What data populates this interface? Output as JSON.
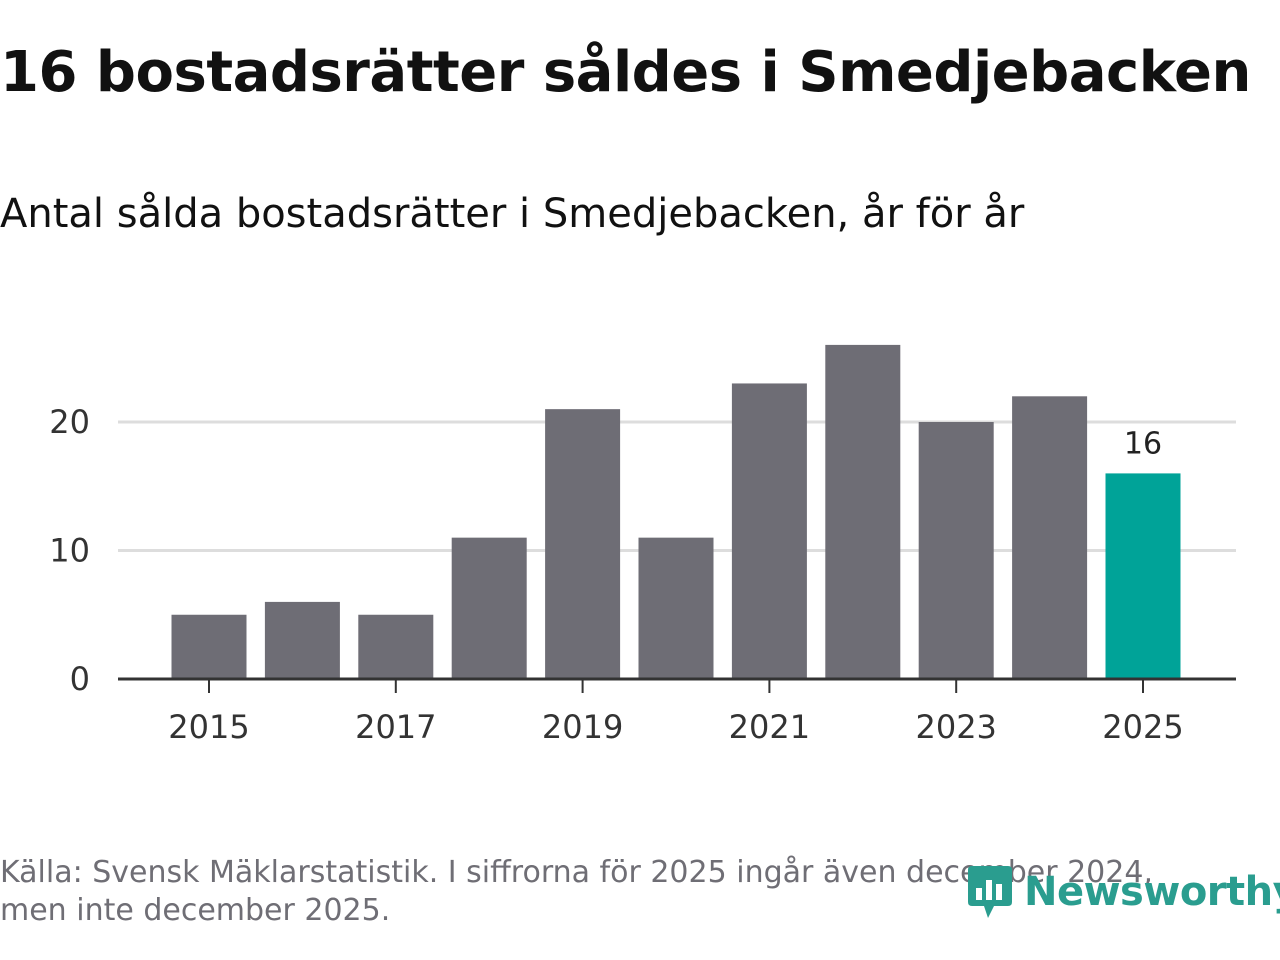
{
  "chart_data": {
    "type": "bar",
    "title": "16 bostadsrätter såldes i Smedjebacken",
    "subtitle": "Antal sålda bostadsrätter i Smedjebacken, år för år",
    "categories": [
      "2015",
      "2016",
      "2017",
      "2018",
      "2019",
      "2020",
      "2021",
      "2022",
      "2023",
      "2024",
      "2025"
    ],
    "values": [
      5,
      6,
      5,
      11,
      21,
      11,
      23,
      26,
      20,
      22,
      16
    ],
    "x_tick_labels": [
      "2015",
      "2017",
      "2019",
      "2021",
      "2023",
      "2025"
    ],
    "y_ticks": [
      0,
      10,
      20
    ],
    "ylim": [
      0,
      27
    ],
    "xlabel": "",
    "ylabel": "",
    "grid": true,
    "data_labels": [
      {
        "category": "2025",
        "text": "16"
      }
    ],
    "colors": {
      "bar": "#6e6d75",
      "highlight": "#00a398",
      "grid": "#dddddd",
      "axis": "#333333"
    },
    "highlight_category": "2025"
  },
  "footer": {
    "source_line1": "Källa: Svensk Mäklarstatistik. I siffrorna för 2025 ingår även december 2024,",
    "source_line2": "men inte december 2025."
  },
  "brand": {
    "name": "Newsworthy",
    "icon": "newsworthy-logo-icon",
    "color": "#2a9d8f"
  }
}
